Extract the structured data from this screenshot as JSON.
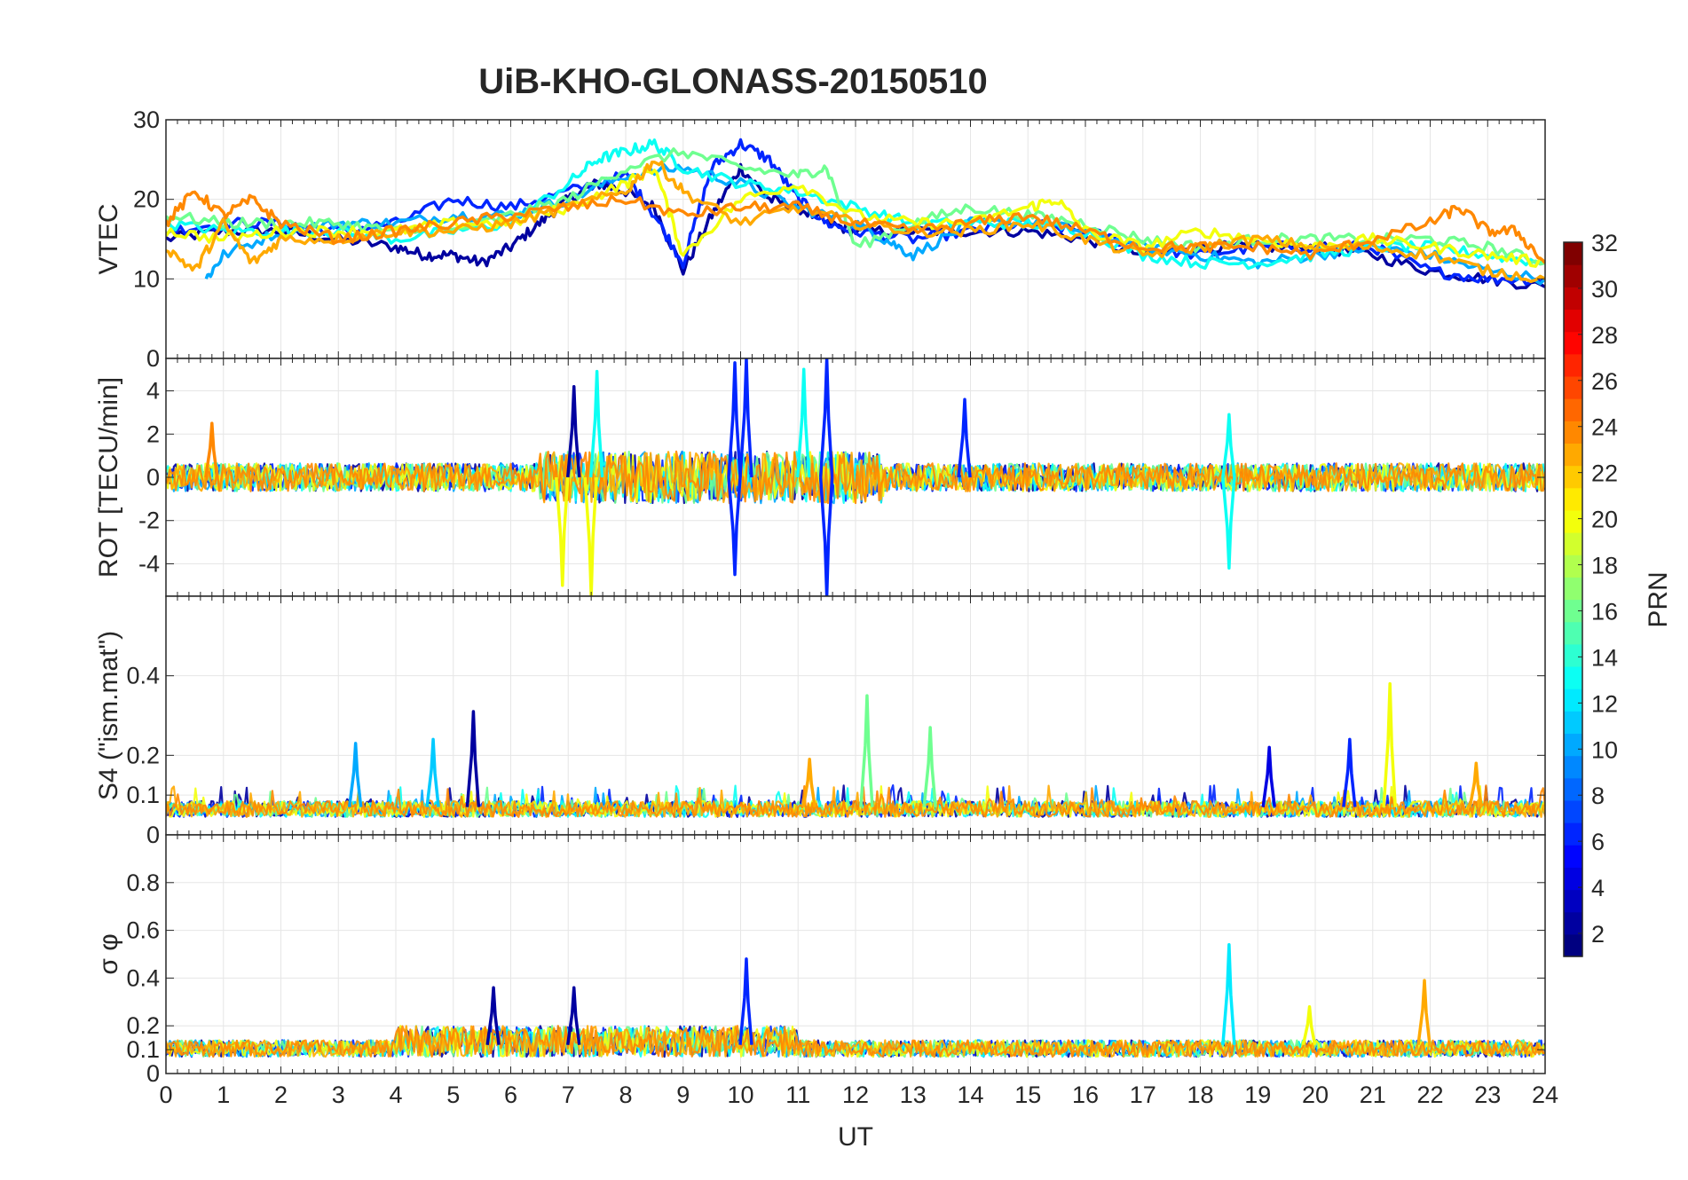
{
  "chart_data": {
    "type": "line",
    "title": "UiB-KHO-GLONASS-20150510",
    "xlabel": "UT",
    "xlim": [
      0,
      24
    ],
    "xticks": [
      "0",
      "1",
      "2",
      "3",
      "4",
      "5",
      "6",
      "7",
      "8",
      "9",
      "10",
      "11",
      "12",
      "13",
      "14",
      "15",
      "16",
      "17",
      "18",
      "19",
      "20",
      "21",
      "22",
      "23",
      "24"
    ],
    "grid": true,
    "colorbar": {
      "label": "PRN",
      "range": [
        1,
        32
      ],
      "ticks": [
        "2",
        "4",
        "6",
        "8",
        "10",
        "12",
        "14",
        "16",
        "18",
        "20",
        "22",
        "24",
        "26",
        "28",
        "30",
        "32"
      ],
      "colormap": "jet"
    },
    "panels": [
      {
        "ylabel": "VTEC",
        "ylim": [
          0,
          30
        ],
        "yticks": [
          "0",
          "10",
          "20",
          "30"
        ],
        "series": [
          {
            "name": "PRN 2",
            "prn": 2,
            "x": [
              0,
              1,
              2,
              3,
              4,
              4.5,
              5,
              5.5,
              6,
              6.5,
              7,
              7.5,
              8,
              8.5,
              9,
              9.5,
              10,
              10.5,
              11,
              11.5,
              12,
              13,
              14,
              15,
              16,
              17,
              18,
              19,
              20,
              21,
              22,
              23,
              24
            ],
            "values": [
              15,
              16,
              16,
              15,
              14,
              13,
              13,
              12,
              14,
              17,
              20,
              22,
              21,
              19,
              11,
              18,
              24,
              20,
              19,
              17,
              16,
              16,
              16,
              16,
              15,
              13,
              14,
              14,
              14,
              13,
              11,
              10,
              9
            ]
          },
          {
            "name": "PRN 6",
            "prn": 6,
            "x": [
              0,
              1,
              2,
              3,
              4,
              5,
              6,
              7,
              8,
              8.5,
              9,
              9.5,
              10,
              10.5,
              11,
              11.5,
              12,
              13,
              14,
              15,
              16,
              17,
              18,
              19,
              20,
              21,
              22,
              23,
              24
            ],
            "values": [
              16,
              17,
              17,
              16,
              17,
              20,
              19,
              21,
              23,
              18,
              12,
              24,
              27,
              25,
              20,
              17,
              16,
              15,
              16,
              17,
              16,
              14,
              13,
              14,
              14,
              14,
              11,
              10,
              10
            ]
          },
          {
            "name": "PRN 10",
            "prn": 10,
            "x": [
              0.7,
              1,
              2,
              3,
              4,
              5,
              6,
              7,
              8,
              9,
              10,
              11,
              12,
              12.5,
              13,
              14,
              15,
              16,
              17,
              18,
              19,
              20,
              21,
              22,
              23,
              24
            ],
            "values": [
              10,
              13,
              16,
              17,
              17,
              18,
              18,
              20,
              23,
              24,
              22,
              19,
              17,
              15,
              13,
              17,
              17,
              16,
              14,
              13,
              12,
              13,
              14,
              13,
              11,
              10
            ]
          },
          {
            "name": "PRN 13",
            "prn": 13,
            "x": [
              0,
              1,
              2,
              3,
              4,
              5,
              6,
              7,
              7.5,
              8,
              8.5,
              9,
              10,
              11,
              12,
              13,
              14,
              15,
              16,
              17,
              18,
              19,
              20,
              21,
              22,
              23,
              24
            ],
            "values": [
              17,
              16,
              16,
              16,
              15,
              16,
              17,
              22,
              25,
              26,
              27,
              24,
              22,
              21,
              19,
              17,
              17,
              17,
              16,
              13,
              12,
              12,
              13,
              14,
              14,
              13,
              12
            ]
          },
          {
            "name": "PRN 16",
            "prn": 16,
            "x": [
              0,
              1,
              2,
              3,
              4,
              5,
              6,
              7,
              8,
              9,
              10,
              11,
              11.5,
              12,
              13,
              14,
              15,
              16,
              17,
              18,
              19,
              20,
              21,
              22,
              23,
              24
            ],
            "values": [
              18,
              17,
              17,
              17,
              16,
              16,
              18,
              20,
              24,
              26,
              24,
              23,
              24,
              14,
              17,
              19,
              18,
              17,
              15,
              14,
              15,
              15,
              15,
              15,
              14,
              12
            ]
          },
          {
            "name": "PRN 20",
            "prn": 20,
            "x": [
              0,
              1,
              2,
              3,
              4,
              5,
              6,
              7,
              8,
              8.5,
              9,
              10,
              11,
              12,
              13,
              14,
              15,
              15.5,
              16,
              17,
              18,
              19,
              20,
              21,
              22,
              23,
              24
            ],
            "values": [
              16,
              15,
              16,
              16,
              16,
              17,
              17,
              19,
              22,
              24,
              13,
              20,
              22,
              18,
              17,
              17,
              19,
              20,
              16,
              14,
              16,
              15,
              14,
              15,
              14,
              13,
              12
            ]
          },
          {
            "name": "PRN 23",
            "prn": 23,
            "x": [
              0,
              0.5,
              1,
              1.5,
              2,
              3,
              4,
              5,
              6,
              7,
              8,
              8.5,
              9,
              10,
              11,
              12,
              13,
              14,
              15,
              16,
              17,
              18,
              19,
              20,
              21,
              22,
              23,
              24
            ],
            "values": [
              14,
              11,
              17,
              12,
              15,
              15,
              16,
              16,
              17,
              19,
              21,
              25,
              21,
              17,
              19,
              17,
              16,
              16,
              17,
              15,
              13,
              14,
              15,
              14,
              14,
              13,
              11,
              10
            ]
          },
          {
            "name": "PRN 24",
            "prn": 24,
            "x": [
              0,
              0.5,
              1,
              1.5,
              2,
              3,
              4,
              5,
              6,
              7,
              8,
              9,
              10,
              11,
              12,
              13,
              14,
              15,
              16,
              17,
              18,
              19,
              20,
              21,
              22,
              22.5,
              23,
              23.5,
              24
            ],
            "values": [
              17,
              21,
              18,
              20,
              17,
              15,
              16,
              17,
              18,
              19,
              20,
              18,
              19,
              19,
              17,
              16,
              17,
              18,
              16,
              14,
              14,
              14,
              13,
              15,
              17,
              19,
              16,
              16,
              12
            ]
          }
        ]
      },
      {
        "ylabel": "ROT [TECU/min]",
        "ylim": [
          -5.5,
          5.5
        ],
        "yticks": [
          "-4",
          "-2",
          "0",
          "2",
          "4"
        ],
        "notes": "Noisy series fluctuating around 0 (about ±1 TECU/min) with spikes up to about ±5 between 7 and 12 UT",
        "spikes": [
          {
            "prn": 2,
            "x": 7.1,
            "value": 4.2
          },
          {
            "prn": 13,
            "x": 7.5,
            "value": 4.9
          },
          {
            "prn": 20,
            "x": 6.9,
            "value": -5.0
          },
          {
            "prn": 20,
            "x": 7.4,
            "value": -5.5
          },
          {
            "prn": 6,
            "x": 9.9,
            "value": 5.3
          },
          {
            "prn": 6,
            "x": 10.1,
            "value": 5.5
          },
          {
            "prn": 6,
            "x": 9.9,
            "value": -4.5
          },
          {
            "prn": 13,
            "x": 11.1,
            "value": 5.0
          },
          {
            "prn": 6,
            "x": 11.5,
            "value": 5.5
          },
          {
            "prn": 6,
            "x": 11.5,
            "value": -5.5
          },
          {
            "prn": 6,
            "x": 13.9,
            "value": 3.6
          },
          {
            "prn": 13,
            "x": 18.5,
            "value": 2.9
          },
          {
            "prn": 13,
            "x": 18.5,
            "value": -4.2
          },
          {
            "prn": 24,
            "x": 0.8,
            "value": 2.5
          }
        ]
      },
      {
        "ylabel": "S4 (\"ism.mat\")",
        "ylim": [
          0,
          0.6
        ],
        "yticks": [
          "0",
          "0.1",
          "0.2",
          "0.4"
        ],
        "notes": "Baseline around 0.05-0.1 with bursts",
        "spikes": [
          {
            "prn": 10,
            "x": 3.3,
            "value": 0.23
          },
          {
            "prn": 11,
            "x": 4.65,
            "value": 0.24
          },
          {
            "prn": 2,
            "x": 5.35,
            "value": 0.31
          },
          {
            "prn": 23,
            "x": 11.2,
            "value": 0.19
          },
          {
            "prn": 16,
            "x": 12.2,
            "value": 0.35
          },
          {
            "prn": 16,
            "x": 13.3,
            "value": 0.27
          },
          {
            "prn": 4,
            "x": 19.2,
            "value": 0.22
          },
          {
            "prn": 6,
            "x": 20.6,
            "value": 0.24
          },
          {
            "prn": 20,
            "x": 21.3,
            "value": 0.38
          },
          {
            "prn": 23,
            "x": 22.8,
            "value": 0.18
          }
        ]
      },
      {
        "ylabel": "σ φ",
        "ylim": [
          0,
          1
        ],
        "yticks": [
          "0",
          "0.1",
          "0.2",
          "0.4",
          "0.6",
          "0.8"
        ],
        "notes": "Baseline around 0.1-0.15 with enhanced activity between 4 and 11 UT",
        "spikes": [
          {
            "prn": 2,
            "x": 5.7,
            "value": 0.36
          },
          {
            "prn": 2,
            "x": 7.1,
            "value": 0.36
          },
          {
            "prn": 6,
            "x": 10.1,
            "value": 0.48
          },
          {
            "prn": 12,
            "x": 18.5,
            "value": 0.54
          },
          {
            "prn": 20,
            "x": 19.9,
            "value": 0.28
          },
          {
            "prn": 23,
            "x": 21.9,
            "value": 0.39
          }
        ]
      }
    ]
  }
}
